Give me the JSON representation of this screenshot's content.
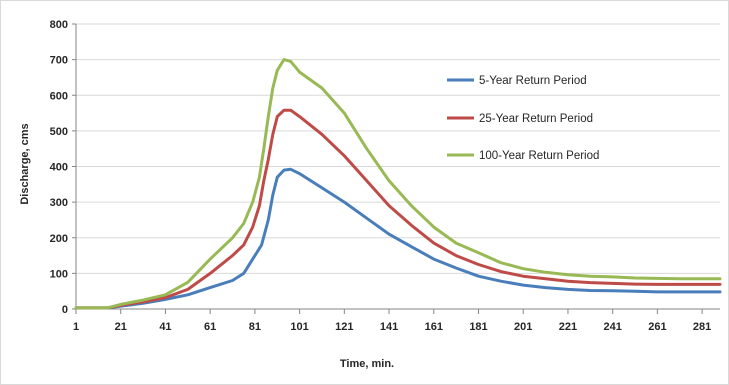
{
  "chart_data": {
    "type": "line",
    "title": "",
    "xlabel": "Time, min.",
    "ylabel": "Discharge, cms",
    "xlim": [
      1,
      289
    ],
    "ylim": [
      0,
      800
    ],
    "x_ticks": [
      1,
      21,
      41,
      61,
      81,
      101,
      121,
      141,
      161,
      181,
      201,
      221,
      241,
      261,
      281
    ],
    "y_ticks": [
      0,
      100,
      200,
      300,
      400,
      500,
      600,
      700,
      800
    ],
    "grid": {
      "horizontal": true,
      "vertical": false,
      "color": "#d9d9d9"
    },
    "legend_position": "right",
    "series": [
      {
        "name": "5-Year Return Period",
        "color": "#4a7ebb",
        "points": [
          [
            1,
            3
          ],
          [
            15,
            3
          ],
          [
            21,
            8
          ],
          [
            31,
            16
          ],
          [
            41,
            27
          ],
          [
            51,
            40
          ],
          [
            61,
            60
          ],
          [
            71,
            80
          ],
          [
            76,
            100
          ],
          [
            80,
            140
          ],
          [
            84,
            180
          ],
          [
            87,
            250
          ],
          [
            89,
            320
          ],
          [
            91,
            370
          ],
          [
            94,
            390
          ],
          [
            97,
            392
          ],
          [
            101,
            380
          ],
          [
            111,
            340
          ],
          [
            121,
            300
          ],
          [
            131,
            255
          ],
          [
            141,
            210
          ],
          [
            151,
            175
          ],
          [
            161,
            140
          ],
          [
            171,
            115
          ],
          [
            181,
            92
          ],
          [
            191,
            78
          ],
          [
            201,
            67
          ],
          [
            211,
            60
          ],
          [
            221,
            55
          ],
          [
            231,
            52
          ],
          [
            241,
            51
          ],
          [
            251,
            50
          ],
          [
            261,
            48
          ],
          [
            271,
            48
          ],
          [
            281,
            48
          ],
          [
            289,
            48
          ]
        ]
      },
      {
        "name": "25-Year Return Period",
        "color": "#be4b48",
        "points": [
          [
            1,
            3
          ],
          [
            15,
            3
          ],
          [
            21,
            10
          ],
          [
            31,
            20
          ],
          [
            41,
            32
          ],
          [
            51,
            55
          ],
          [
            61,
            100
          ],
          [
            71,
            150
          ],
          [
            76,
            180
          ],
          [
            80,
            230
          ],
          [
            83,
            290
          ],
          [
            85,
            360
          ],
          [
            87,
            420
          ],
          [
            89,
            490
          ],
          [
            91,
            540
          ],
          [
            94,
            558
          ],
          [
            97,
            558
          ],
          [
            101,
            540
          ],
          [
            111,
            490
          ],
          [
            121,
            430
          ],
          [
            131,
            360
          ],
          [
            141,
            290
          ],
          [
            151,
            235
          ],
          [
            161,
            185
          ],
          [
            171,
            150
          ],
          [
            181,
            125
          ],
          [
            191,
            105
          ],
          [
            201,
            92
          ],
          [
            211,
            85
          ],
          [
            221,
            78
          ],
          [
            231,
            74
          ],
          [
            241,
            72
          ],
          [
            251,
            70
          ],
          [
            261,
            69
          ],
          [
            271,
            69
          ],
          [
            281,
            69
          ],
          [
            289,
            69
          ]
        ]
      },
      {
        "name": "100-Year Return Period",
        "color": "#98b954",
        "points": [
          [
            1,
            3
          ],
          [
            15,
            3
          ],
          [
            21,
            13
          ],
          [
            31,
            25
          ],
          [
            41,
            40
          ],
          [
            51,
            75
          ],
          [
            61,
            140
          ],
          [
            71,
            200
          ],
          [
            76,
            240
          ],
          [
            80,
            300
          ],
          [
            83,
            370
          ],
          [
            85,
            450
          ],
          [
            87,
            540
          ],
          [
            89,
            620
          ],
          [
            91,
            670
          ],
          [
            94,
            700
          ],
          [
            97,
            695
          ],
          [
            101,
            665
          ],
          [
            111,
            620
          ],
          [
            121,
            550
          ],
          [
            131,
            450
          ],
          [
            141,
            360
          ],
          [
            151,
            290
          ],
          [
            161,
            230
          ],
          [
            171,
            185
          ],
          [
            181,
            158
          ],
          [
            191,
            130
          ],
          [
            201,
            113
          ],
          [
            211,
            103
          ],
          [
            221,
            96
          ],
          [
            231,
            92
          ],
          [
            241,
            90
          ],
          [
            251,
            87
          ],
          [
            261,
            86
          ],
          [
            271,
            85
          ],
          [
            281,
            85
          ],
          [
            289,
            85
          ]
        ]
      }
    ]
  }
}
